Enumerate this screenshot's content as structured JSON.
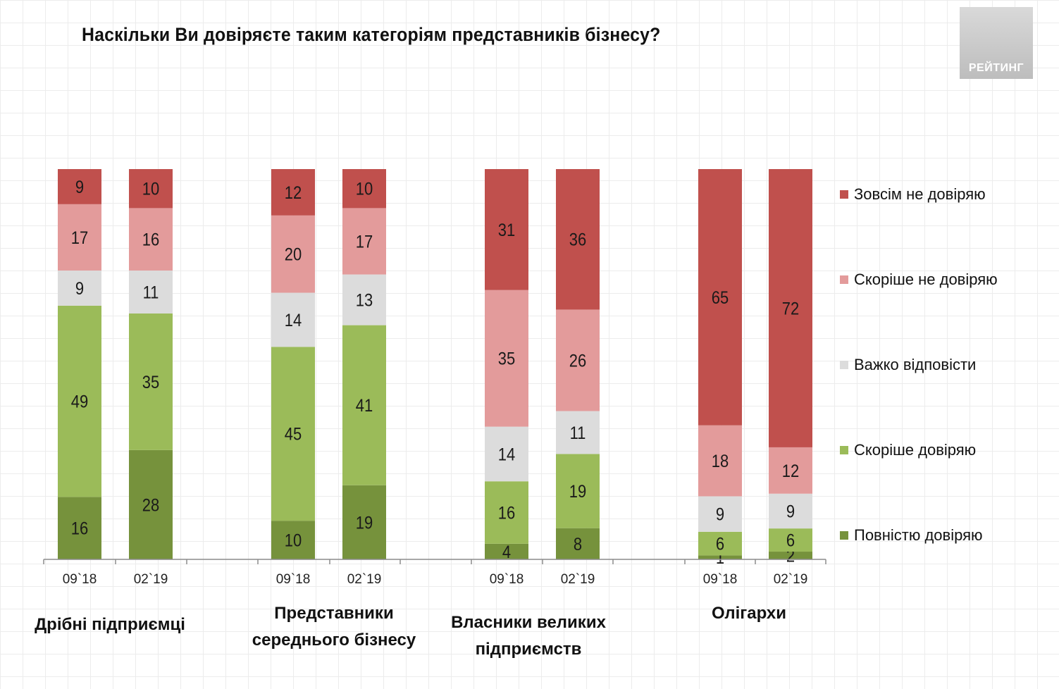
{
  "title": "Наскільки Ви довіряєте таким категоріям представників бізнесу?",
  "logo_text": "РЕЙТИНГ",
  "colors": {
    "Зовсім не довіряю": "#c0504d",
    "Скоріше не довіряю": "#e39b9b",
    "Важко відповісти": "#dcdcdc",
    "Скоріше довіряю": "#9bbb59",
    "Повністю довіряю": "#76923c"
  },
  "chart_data": {
    "type": "bar",
    "stacked": true,
    "title": "Наскільки Ви довіряєте таким категоріям представників бізнесу?",
    "legend_position": "right",
    "groups": [
      {
        "name": "Дрібні підприємці",
        "lines": [
          "Дрібні підприємці"
        ]
      },
      {
        "name": "Представники середнього бізнесу",
        "lines": [
          "Представники",
          "середнього бізнесу"
        ]
      },
      {
        "name": "Власники великих підприємств",
        "lines": [
          "Власники великих",
          "підприємств"
        ]
      },
      {
        "name": "Олігархи",
        "lines": [
          "Олігархи"
        ]
      }
    ],
    "categories": [
      "09`18",
      "02`19",
      "09`18",
      "02`19",
      "09`18",
      "02`19",
      "09`18",
      "02`19"
    ],
    "series": [
      {
        "name": "Повністю довіряю",
        "values": [
          16,
          28,
          10,
          19,
          4,
          8,
          1,
          2
        ]
      },
      {
        "name": "Скоріше довіряю",
        "values": [
          49,
          35,
          45,
          41,
          16,
          19,
          6,
          6
        ]
      },
      {
        "name": "Важко відповісти",
        "values": [
          9,
          11,
          14,
          13,
          14,
          11,
          9,
          9
        ]
      },
      {
        "name": "Скоріше не довіряю",
        "values": [
          17,
          16,
          20,
          17,
          35,
          26,
          18,
          12
        ]
      },
      {
        "name": "Зовсім не довіряю",
        "values": [
          9,
          10,
          12,
          10,
          31,
          36,
          65,
          72
        ]
      }
    ],
    "legend": [
      "Зовсім не довіряю",
      "Скоріше не довіряю",
      "Важко відповісти",
      "Скоріше довіряю",
      "Повністю довіряю"
    ]
  }
}
